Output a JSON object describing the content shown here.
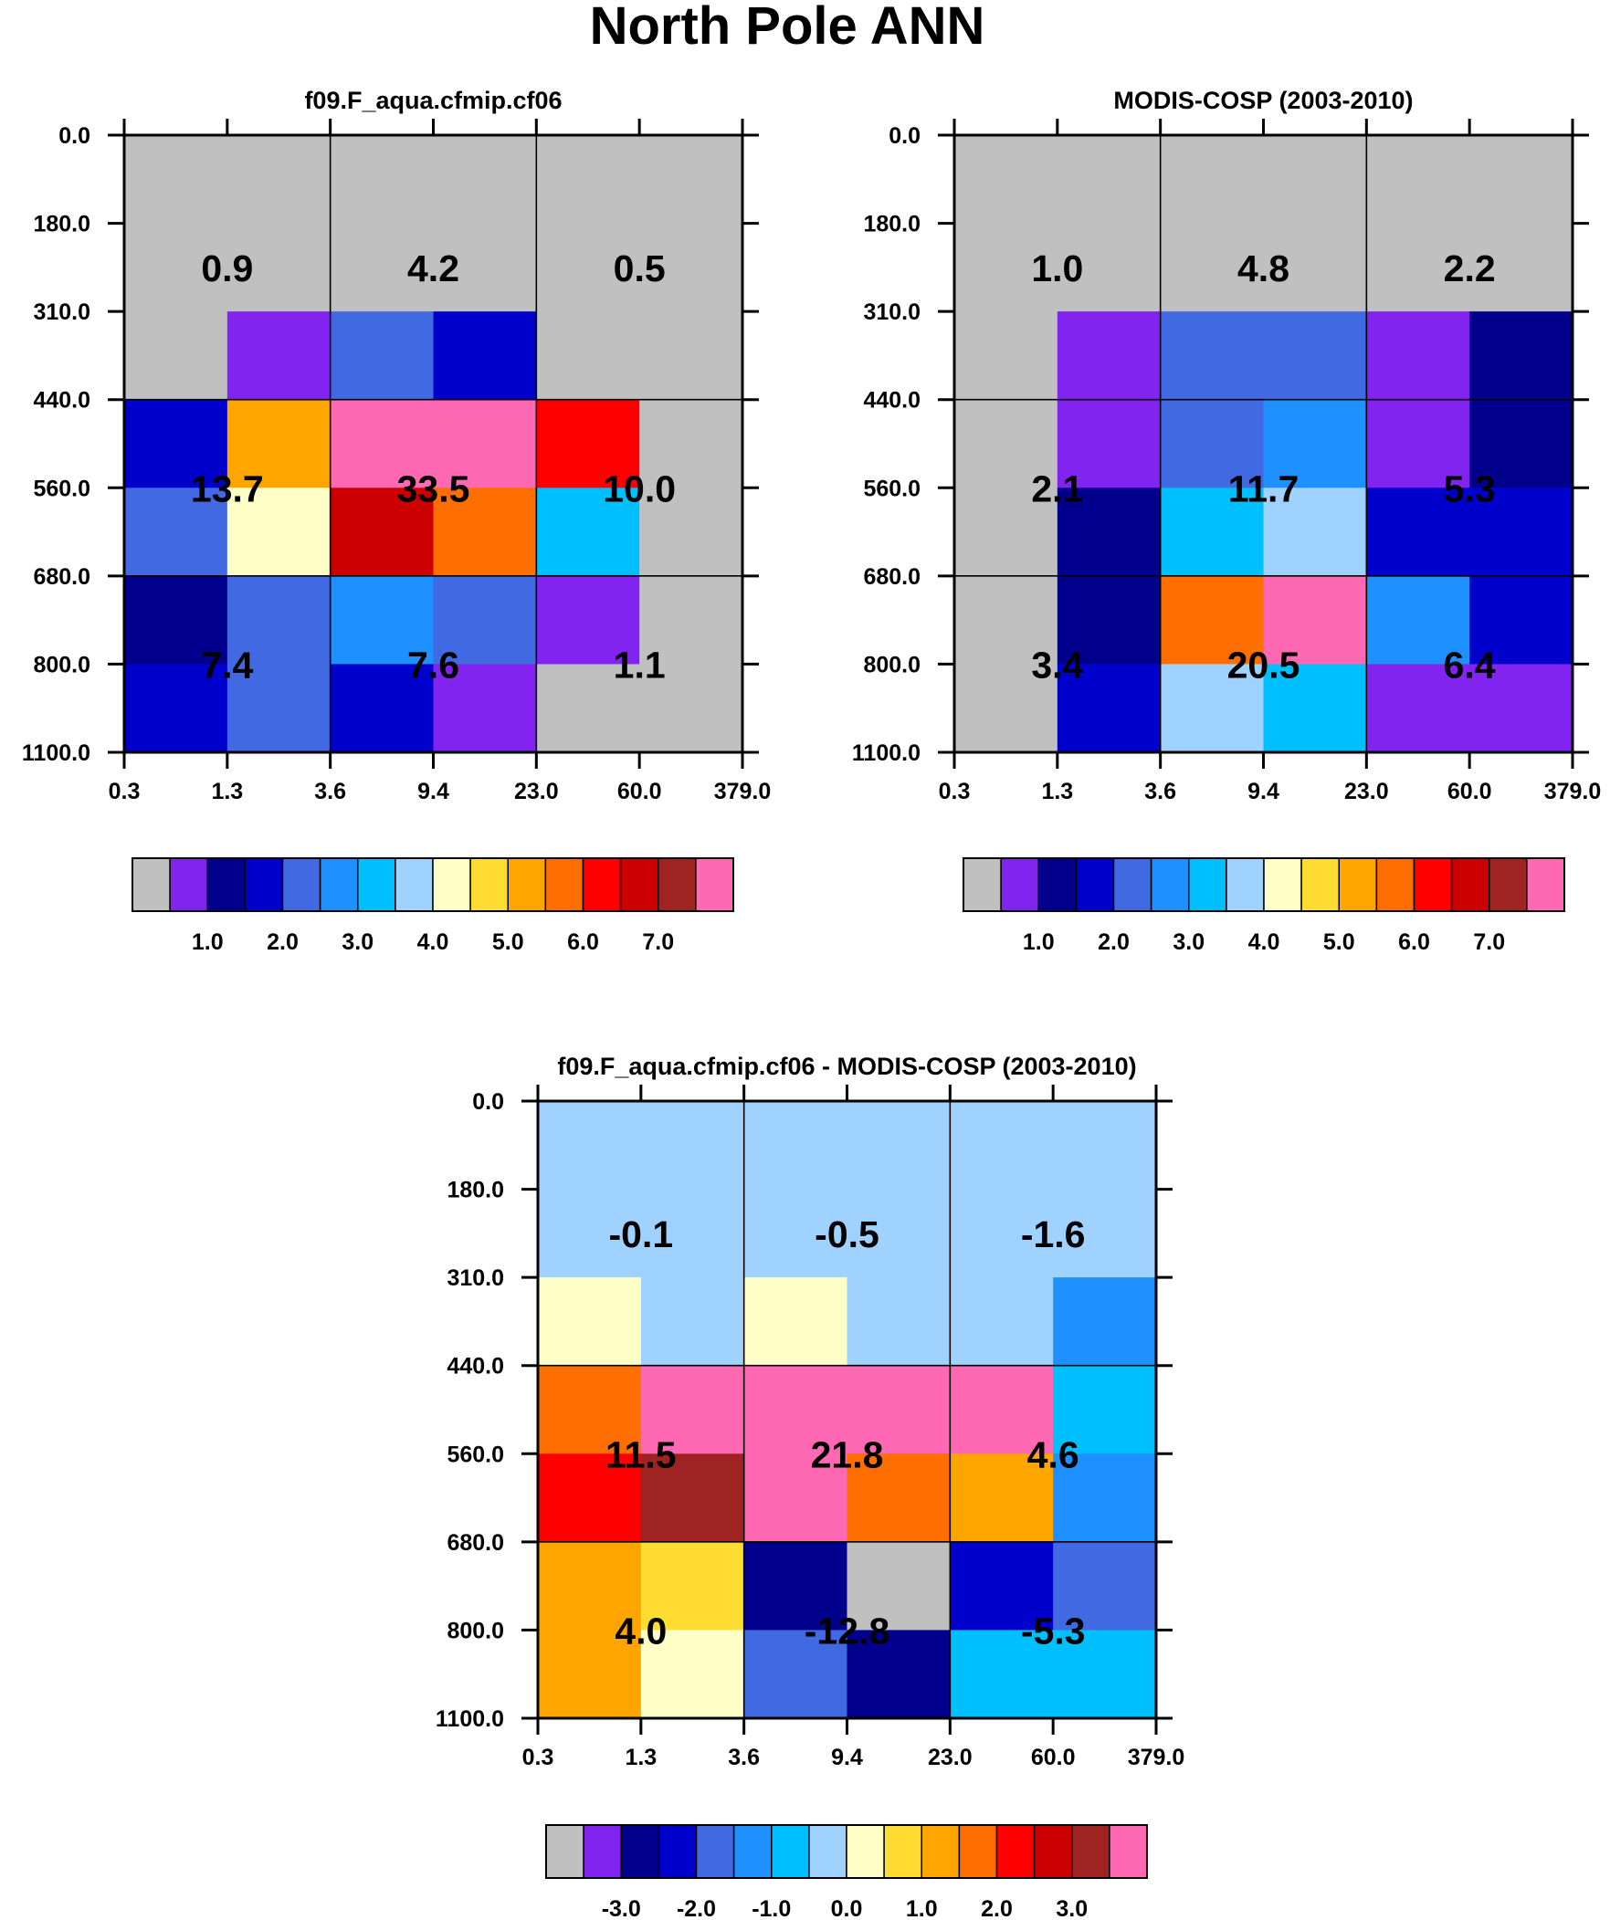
{
  "title": "North Pole ANN",
  "palette": [
    "#c0c0c0",
    "#8224f0",
    "#00008c",
    "#0000cd",
    "#4169e1",
    "#1e90ff",
    "#00bfff",
    "#a0d2ff",
    "#ffffc8",
    "#ffdc32",
    "#ffa500",
    "#ff6e00",
    "#ff0000",
    "#cd0000",
    "#a02323",
    "#ff69b4"
  ],
  "chart_data": [
    {
      "type": "heatmap",
      "title": "f09.F_aqua.cfmip.cf06",
      "x_ticks": [
        "0.3",
        "1.3",
        "3.6",
        "9.4",
        "23.0",
        "60.0",
        "379.0"
      ],
      "y_ticks": [
        "0.0",
        "180.0",
        "310.0",
        "440.0",
        "560.0",
        "680.0",
        "800.0",
        "1100.0"
      ],
      "grid": "3x3 groups",
      "color_index": [
        [
          0,
          0,
          0,
          0,
          0,
          0
        ],
        [
          0,
          0,
          0,
          0,
          0,
          0
        ],
        [
          0,
          1,
          4,
          3,
          0,
          0
        ],
        [
          3,
          10,
          15,
          15,
          12,
          0
        ],
        [
          4,
          8,
          13,
          11,
          6,
          0
        ],
        [
          2,
          4,
          5,
          4,
          1,
          0
        ],
        [
          3,
          4,
          3,
          1,
          0,
          0
        ]
      ],
      "annotations": [
        [
          "0.9",
          "4.2",
          "0.5"
        ],
        [
          "13.7",
          "33.5",
          "10.0"
        ],
        [
          "7.4",
          "7.6",
          "1.1"
        ]
      ],
      "colorbar": {
        "labels": [
          "1.0",
          "2.0",
          "3.0",
          "4.0",
          "5.0",
          "6.0",
          "7.0"
        ]
      }
    },
    {
      "type": "heatmap",
      "title": "MODIS-COSP (2003-2010)",
      "x_ticks": [
        "0.3",
        "1.3",
        "3.6",
        "9.4",
        "23.0",
        "60.0",
        "379.0"
      ],
      "y_ticks": [
        "0.0",
        "180.0",
        "310.0",
        "440.0",
        "560.0",
        "680.0",
        "800.0",
        "1100.0"
      ],
      "grid": "3x3 groups",
      "color_index": [
        [
          0,
          0,
          0,
          0,
          0,
          0
        ],
        [
          0,
          0,
          0,
          0,
          0,
          0
        ],
        [
          0,
          1,
          4,
          4,
          1,
          2
        ],
        [
          0,
          1,
          4,
          5,
          1,
          2
        ],
        [
          0,
          2,
          6,
          7,
          3,
          3
        ],
        [
          0,
          2,
          11,
          15,
          5,
          3
        ],
        [
          0,
          3,
          7,
          6,
          1,
          1
        ]
      ],
      "annotations": [
        [
          "1.0",
          "4.8",
          "2.2"
        ],
        [
          "2.1",
          "11.7",
          "5.3"
        ],
        [
          "3.4",
          "20.5",
          "6.4"
        ]
      ],
      "colorbar": {
        "labels": [
          "1.0",
          "2.0",
          "3.0",
          "4.0",
          "5.0",
          "6.0",
          "7.0"
        ]
      }
    },
    {
      "type": "heatmap",
      "title": "f09.F_aqua.cfmip.cf06 - MODIS-COSP (2003-2010)",
      "x_ticks": [
        "0.3",
        "1.3",
        "3.6",
        "9.4",
        "23.0",
        "60.0",
        "379.0"
      ],
      "y_ticks": [
        "0.0",
        "180.0",
        "310.0",
        "440.0",
        "560.0",
        "680.0",
        "800.0",
        "1100.0"
      ],
      "grid": "3x3 groups",
      "color_index": [
        [
          7,
          7,
          7,
          7,
          7,
          7
        ],
        [
          7,
          7,
          7,
          7,
          7,
          7
        ],
        [
          8,
          7,
          8,
          7,
          7,
          5
        ],
        [
          11,
          15,
          15,
          15,
          15,
          6
        ],
        [
          12,
          14,
          15,
          11,
          10,
          5
        ],
        [
          10,
          9,
          2,
          0,
          3,
          4
        ],
        [
          10,
          8,
          4,
          2,
          6,
          6
        ]
      ],
      "annotations": [
        [
          "-0.1",
          "-0.5",
          "-1.6"
        ],
        [
          "11.5",
          "21.8",
          "4.6"
        ],
        [
          "4.0",
          "-12.8",
          "-5.3"
        ]
      ],
      "colorbar": {
        "labels": [
          "-3.0",
          "-2.0",
          "-1.0",
          "0.0",
          "1.0",
          "2.0",
          "3.0"
        ]
      }
    }
  ]
}
